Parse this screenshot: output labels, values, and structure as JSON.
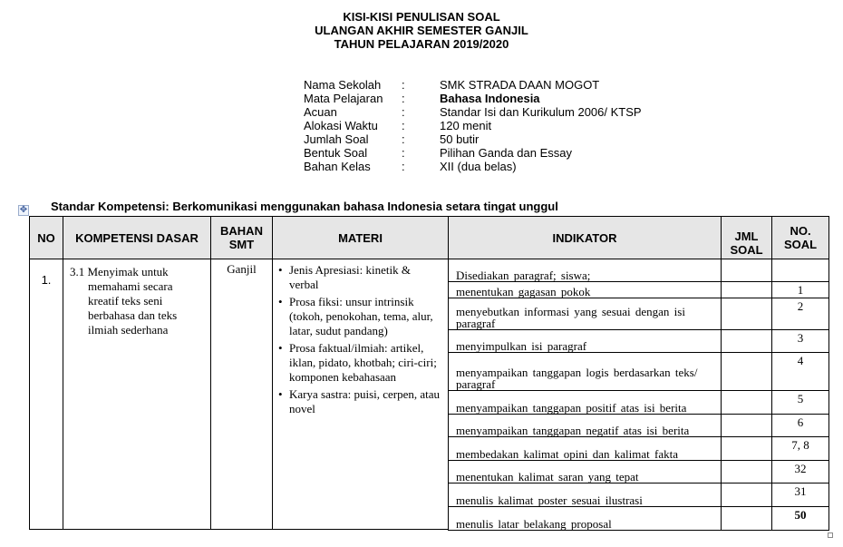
{
  "title": [
    "KISI-KISI PENULISAN SOAL",
    "ULANGAN AKHIR SEMESTER GANJIL",
    "TAHUN PELAJARAN 2019/2020"
  ],
  "info": [
    {
      "label": "Nama Sekolah",
      "value": "SMK  STRADA DAAN MOGOT"
    },
    {
      "label": "Mata Pelajaran",
      "value": "Bahasa Indonesia"
    },
    {
      "label": "Acuan",
      "value": "Standar Isi dan Kurikulum 2006/ KTSP"
    },
    {
      "label": "Alokasi Waktu",
      "value": "120  menit"
    },
    {
      "label": "Jumlah Soal",
      "value": "50 butir"
    },
    {
      "label": "Bentuk Soal",
      "value": "Pilihan Ganda dan Essay"
    },
    {
      "label": "Bahan Kelas",
      "value": "XII (dua belas)"
    }
  ],
  "colon": ":",
  "standar_kompetensi": "Standar Kompetensi: Berkomunikasi menggunakan bahasa Indonesia setara tingat unggul",
  "headers": {
    "no": "NO",
    "kd": "KOMPETENSI DASAR",
    "bahan": "BAHAN SMT",
    "materi": "MATERI",
    "indikator": "INDIKATOR",
    "jml": "JML SOAL",
    "no_soal": "NO. SOAL"
  },
  "row": {
    "no": "1.",
    "kd": "3.1 Menyimak untuk memahami secara kreatif teks seni berbahasa dan teks ilmiah sederhana",
    "bahan": "Ganjil",
    "materi": [
      "Jenis Apresiasi:  kinetik & verbal",
      "Prosa fiksi:  unsur intrinsik (tokoh, penokohan, tema, alur, latar, sudut pandang)",
      "Prosa faktual/ilmiah: artikel, iklan, pidato, khotbah; ciri-ciri; komponen kebahasaan",
      "Karya sastra: puisi, cerpen, atau novel"
    ],
    "indikator": [
      {
        "text": "Disediakan paragraf; siswa;",
        "no_soal": ""
      },
      {
        "text": "menentukan gagasan pokok",
        "no_soal": "1"
      },
      {
        "text": "menyebutkan informasi yang sesuai dengan isi paragraf",
        "no_soal": "2"
      },
      {
        "text": "menyimpulkan isi paragraf",
        "no_soal": "3"
      },
      {
        "text": "menyampaikan tanggapan logis berdasarkan teks/ paragraf",
        "no_soal": "4"
      },
      {
        "text": "menyampaikan tanggapan positif atas isi berita",
        "no_soal": "5"
      },
      {
        "text": "menyampaikan tanggapan negatif atas isi berita",
        "no_soal": "6"
      },
      {
        "text": "membedakan kalimat opini dan kalimat fakta",
        "no_soal": "7, 8"
      },
      {
        "text": "menentukan kalimat saran yang tepat",
        "no_soal": "32"
      },
      {
        "text": "menulis kalimat poster sesuai ilustrasi",
        "no_soal": "31"
      },
      {
        "text": "menulis latar belakang proposal",
        "no_soal": "50"
      }
    ]
  }
}
